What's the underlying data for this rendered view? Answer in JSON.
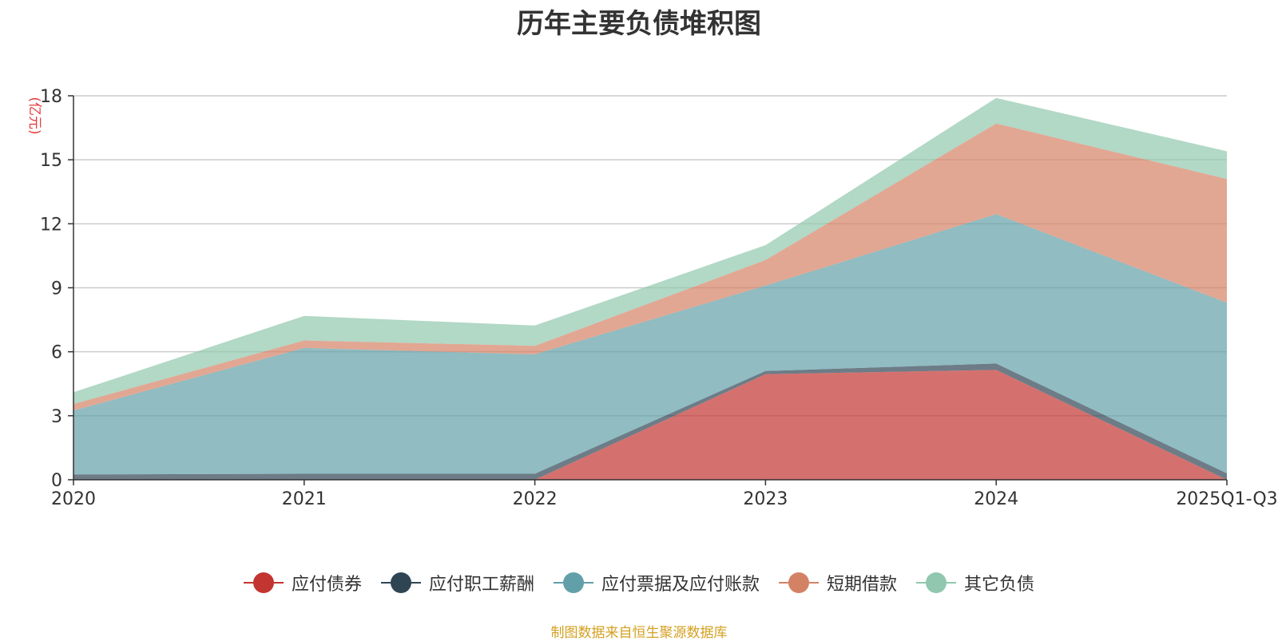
{
  "chart_data": {
    "type": "area",
    "stacked": true,
    "title": "历年主要负债堆积图",
    "unit_label": "(亿元)",
    "categories": [
      "2020",
      "2021",
      "2022",
      "2023",
      "2024",
      "2025Q1-Q3"
    ],
    "ylim": [
      0,
      18
    ],
    "yticks": [
      0,
      3,
      6,
      9,
      12,
      15,
      18
    ],
    "grid": true,
    "legend_position": "bottom",
    "series": [
      {
        "name": "应付债券",
        "color": "#c23531",
        "values": [
          0,
          0,
          0,
          4.95,
          5.15,
          0
        ]
      },
      {
        "name": "应付职工薪酬",
        "color": "#2f4554",
        "values": [
          0.25,
          0.28,
          0.28,
          0.15,
          0.3,
          0.3
        ]
      },
      {
        "name": "应付票据及应付账款",
        "color": "#61a0a8",
        "values": [
          3.0,
          5.9,
          5.6,
          4.0,
          7.0,
          8.0
        ]
      },
      {
        "name": "短期借款",
        "color": "#d48265",
        "values": [
          0.3,
          0.35,
          0.4,
          1.2,
          4.25,
          5.8
        ]
      },
      {
        "name": "其它负债",
        "color": "#91c7ae",
        "values": [
          0.55,
          1.15,
          0.95,
          0.7,
          1.2,
          1.3
        ]
      }
    ]
  },
  "source_note": "制图数据来自恒生聚源数据库"
}
